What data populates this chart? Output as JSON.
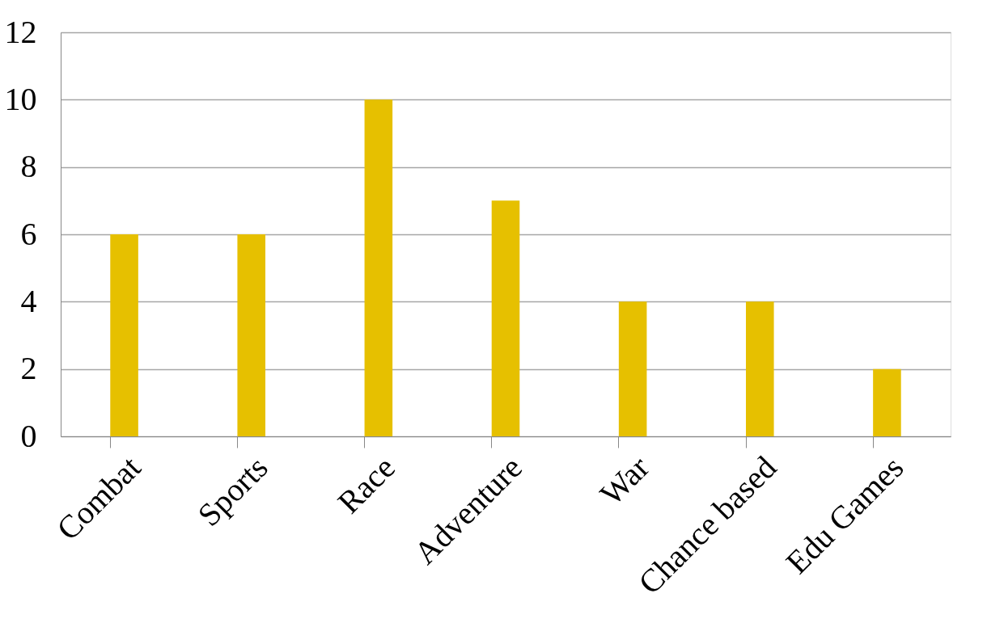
{
  "chart_data": {
    "type": "bar",
    "categories": [
      "Combat",
      "Sports",
      "Race",
      "Adventure",
      "War",
      "Chance based",
      "Edu Games"
    ],
    "values": [
      6,
      6,
      10,
      7,
      4,
      4,
      2
    ],
    "color": "#e6c000",
    "ylim": [
      0,
      12
    ],
    "yticks": [
      0,
      2,
      4,
      6,
      8,
      10,
      12
    ],
    "grid": "y"
  }
}
